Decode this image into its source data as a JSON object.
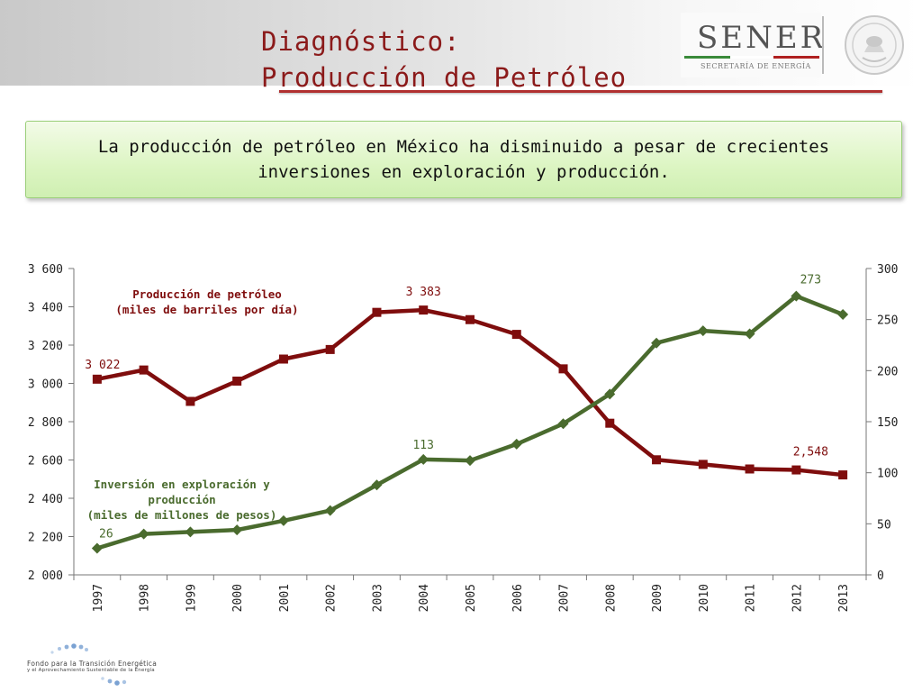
{
  "header": {
    "title_line1": "Diagnóstico:",
    "title_line2": "Producción de Petróleo",
    "logo_text": "SENER",
    "logo_subtext": "SECRETARÍA DE ENERGÍA"
  },
  "callout": {
    "text": "La producción de petróleo en México ha disminuido a pesar de crecientes inversiones en exploración y producción."
  },
  "footer": {
    "org_line1": "Fondo para la Transición Energética",
    "org_line2": "y el Aprovechamiento Sustentable de la Energía"
  },
  "colors": {
    "production": "#7f0d0d",
    "investment": "#4a6b2e",
    "title": "#8b1a1a"
  },
  "chart_data": {
    "type": "line",
    "categories": [
      "1997",
      "1998",
      "1999",
      "2000",
      "2001",
      "2002",
      "2003",
      "2004",
      "2005",
      "2006",
      "2007",
      "2008",
      "2009",
      "2010",
      "2011",
      "2012",
      "2013"
    ],
    "series": [
      {
        "name": "Producción de petróleo (miles de barriles por día)",
        "name_lines": [
          "Producción de petróleo",
          "(miles de barriles por día)"
        ],
        "axis": "left",
        "values": [
          3022,
          3070,
          2906,
          3012,
          3127,
          3177,
          3371,
          3383,
          3333,
          3256,
          3076,
          2792,
          2601,
          2577,
          2553,
          2548,
          2522
        ]
      },
      {
        "name": "Inversión en exploración y producción (miles de millones de pesos)",
        "name_lines": [
          "Inversión en exploración y",
          "producción",
          "(miles de millones de pesos)"
        ],
        "axis": "right",
        "values": [
          26,
          40,
          42,
          44,
          53,
          63,
          88,
          113,
          112,
          128,
          148,
          177,
          227,
          239,
          236,
          273,
          255
        ]
      }
    ],
    "left_axis": {
      "min": 2000,
      "max": 3600,
      "ticks": [
        2000,
        2200,
        2400,
        2600,
        2800,
        3000,
        3200,
        3400,
        3600
      ],
      "tick_labels": [
        "2 000",
        "2 200",
        "2 400",
        "2 600",
        "2 800",
        "3 000",
        "3 200",
        "3 400",
        "3 600"
      ]
    },
    "right_axis": {
      "min": 0,
      "max": 300,
      "ticks": [
        0,
        50,
        100,
        150,
        200,
        250,
        300
      ],
      "tick_labels": [
        "0",
        "50",
        "100",
        "150",
        "200",
        "250",
        "300"
      ]
    },
    "annotations": [
      {
        "series": 0,
        "index": 0,
        "text": "3 022"
      },
      {
        "series": 0,
        "index": 7,
        "text": "3 383"
      },
      {
        "series": 0,
        "index": 15,
        "text": "2,548"
      },
      {
        "series": 1,
        "index": 0,
        "text": "26"
      },
      {
        "series": 1,
        "index": 7,
        "text": "113"
      },
      {
        "series": 1,
        "index": 15,
        "text": "273"
      }
    ],
    "grid": false,
    "legend": "inline labels"
  }
}
